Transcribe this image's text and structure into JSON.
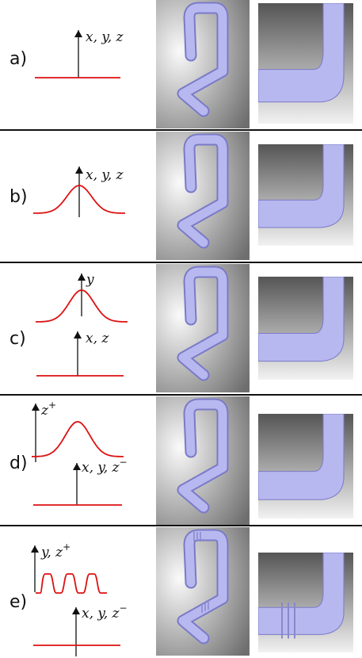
{
  "rows": [
    {
      "label": "a)",
      "plot": {
        "profile": "flat",
        "axes": [
          {
            "label": "x, y, z",
            "superscript": ""
          }
        ]
      }
    },
    {
      "label": "b)",
      "plot": {
        "profile": "gaussian",
        "axes": [
          {
            "label": "x, y, z",
            "superscript": ""
          }
        ]
      }
    },
    {
      "label": "c)",
      "plot": {
        "profile": "gaussian-over-flat",
        "axes": [
          {
            "label": "y",
            "superscript": ""
          },
          {
            "label": "x, z",
            "superscript": ""
          }
        ]
      }
    },
    {
      "label": "d)",
      "plot": {
        "profile": "offset-gaussian-over-flat",
        "axes": [
          {
            "label": "z",
            "superscript": "+"
          },
          {
            "label": "x, y, z",
            "superscript": "−"
          }
        ]
      }
    },
    {
      "label": "e)",
      "plot": {
        "profile": "square-wave-over-flat",
        "axes": [
          {
            "label": "y, z",
            "superscript": "+"
          },
          {
            "label": "x, y, z",
            "superscript": "−"
          }
        ]
      }
    }
  ],
  "colors": {
    "curve": "#dd1111",
    "axis": "#111111",
    "separator": "#111111",
    "tube": "#b8b8f0",
    "tube_shadow": "#7a7ac8",
    "backdrop": "#6e6e6e"
  }
}
